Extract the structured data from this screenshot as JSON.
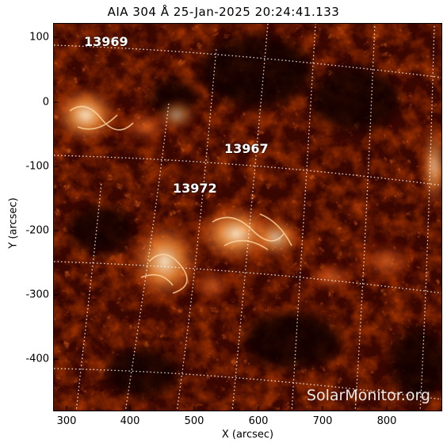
{
  "title": "AIA 304 Å 25-Jan-2025 20:24:41.133",
  "axes": {
    "xlabel": "X (arcsec)",
    "ylabel": "Y (arcsec)",
    "xticks": [
      "300",
      "400",
      "500",
      "600",
      "700",
      "800"
    ],
    "yticks": [
      "100",
      "0",
      "-100",
      "-200",
      "-300",
      "-400"
    ],
    "xlim": [
      280,
      880
    ],
    "ylim": [
      -480,
      120
    ]
  },
  "regions": [
    "13969",
    "13967",
    "13972"
  ],
  "watermark": "SolarMonitor.org",
  "colors": {
    "background_dark": "#120000",
    "mid_red": "#8a1a00",
    "orange": "#e05a10",
    "bright": "#ffe2b0",
    "grid": "#ffffff"
  }
}
